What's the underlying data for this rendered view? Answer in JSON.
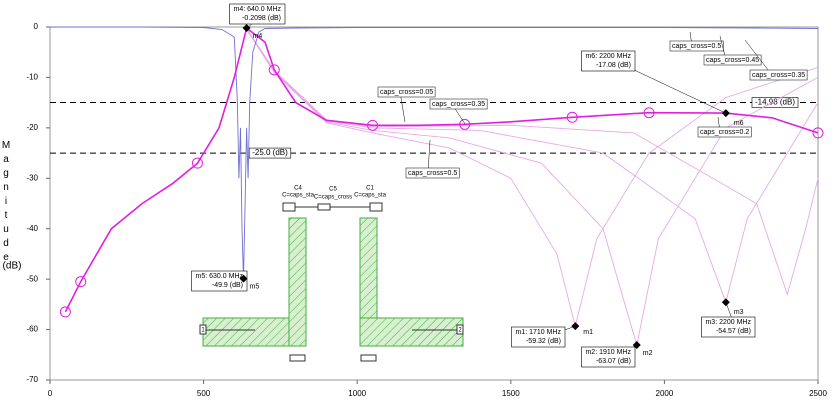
{
  "chart_data": {
    "type": "line",
    "ylabel": "Magnitude",
    "yunit": "(dB)",
    "xlim": [
      0,
      2500
    ],
    "ylim": [
      -70,
      0
    ],
    "xticks": [
      0,
      500,
      1000,
      1500,
      2000,
      2500
    ],
    "yticks": [
      0,
      -10,
      -20,
      -30,
      -40,
      -50,
      -60,
      -70
    ],
    "series": [
      {
        "color": "#e8a8e8",
        "x": [
          640,
          730,
          900,
          1050,
          1300,
          1500,
          1650,
          1710,
          1780,
          1950,
          2200,
          2500
        ],
        "values": [
          -0.5,
          -9,
          -19,
          -21,
          -24,
          -30,
          -45,
          -59.32,
          -42,
          -25,
          -14,
          -8
        ]
      },
      {
        "color": "#e8a8e8",
        "x": [
          640,
          730,
          900,
          1050,
          1300,
          1600,
          1800,
          1910,
          1980,
          2200,
          2500
        ],
        "values": [
          -0.4,
          -9,
          -18.8,
          -20.5,
          -22,
          -27,
          -40,
          -63.07,
          -42,
          -20,
          -10
        ]
      },
      {
        "color": "#e8a8e8",
        "x": [
          640,
          730,
          900,
          1050,
          1400,
          1800,
          2100,
          2200,
          2270,
          2500
        ],
        "values": [
          -0.3,
          -8.8,
          -18.6,
          -20,
          -20.5,
          -25,
          -38,
          -54.57,
          -38,
          -15
        ]
      },
      {
        "color": "#e8a8e8",
        "x": [
          640,
          730,
          900,
          1050,
          1500,
          1900,
          2300,
          2400,
          2460,
          2500
        ],
        "values": [
          -0.3,
          -8.6,
          -18.4,
          -19.8,
          -19.5,
          -21,
          -35,
          -53,
          -40,
          -30
        ]
      },
      {
        "color": "#7070d0",
        "x": [
          0,
          100,
          300,
          500,
          560,
          600,
          610,
          615,
          620,
          625,
          630,
          635,
          640,
          645,
          650,
          660,
          680,
          700,
          800,
          1000,
          1500,
          2000,
          2300,
          2500
        ],
        "values": [
          0,
          0,
          0,
          -0.1,
          -0.5,
          -2,
          -15,
          -30,
          -20,
          -40,
          -49.9,
          -35,
          -20,
          -30,
          -15,
          -5,
          -1,
          -0.3,
          -0.2,
          -0.1,
          -0.1,
          -0.1,
          -0.2,
          -0.3
        ]
      },
      {
        "color": "#e020e0",
        "x": [
          50,
          100,
          200,
          300,
          400,
          480,
          550,
          600,
          640,
          700,
          730,
          800,
          900,
          1050,
          1200,
          1350,
          1500,
          1700,
          1950,
          2200,
          2350,
          2500
        ],
        "values": [
          -56.5,
          -50.5,
          -40,
          -35,
          -31,
          -27,
          -20,
          -10,
          -0.2098,
          -3,
          -8.5,
          -15,
          -18.5,
          -19.5,
          -19.5,
          -19.3,
          -18.8,
          -17.9,
          -17,
          -17.08,
          -18,
          -21
        ]
      }
    ],
    "hlines": [
      {
        "value": -14.98,
        "label": "-14.98 (dB)"
      },
      {
        "value": -25,
        "label": "-25.0 (dB)"
      }
    ],
    "markers": [
      {
        "name": "m1",
        "x": 1710,
        "y": -59.32,
        "label": [
          "m1:  1710 MHz",
          "-59.32  (dB)"
        ]
      },
      {
        "name": "m2",
        "x": 1910,
        "y": -63.07,
        "label": [
          "m2:  1910 MHz",
          "-63.07  (dB)"
        ]
      },
      {
        "name": "m3",
        "x": 2200,
        "y": -54.57,
        "label": [
          "m3:  2200 MHz",
          "-54.57  (dB)"
        ]
      },
      {
        "name": "m4",
        "x": 640,
        "y": -0.2098,
        "label": [
          "m4:  640.0 MHz",
          "-0.2098  (dB)"
        ]
      },
      {
        "name": "m5",
        "x": 630,
        "y": -49.9,
        "label": [
          "m5: 630.0 MHz",
          "-49.9  (dB)"
        ]
      },
      {
        "name": "m6",
        "x": 2200,
        "y": -17.08,
        "label": [
          "m6:  2200 MHz",
          "-17.08  (dB)"
        ]
      }
    ],
    "annotations": [
      "caps_cross=0.5",
      "caps_cross=0.45",
      "caps_cross=0.35",
      "caps_cross=0.05",
      "caps_cross=0.35",
      "caps_cross=0.2",
      "caps_cross=0.5"
    ],
    "schematic": [
      "C4",
      "C=caps_sta",
      "C5",
      "C=caps_cross",
      "C1",
      "C=caps_sta",
      "1",
      "2"
    ]
  }
}
